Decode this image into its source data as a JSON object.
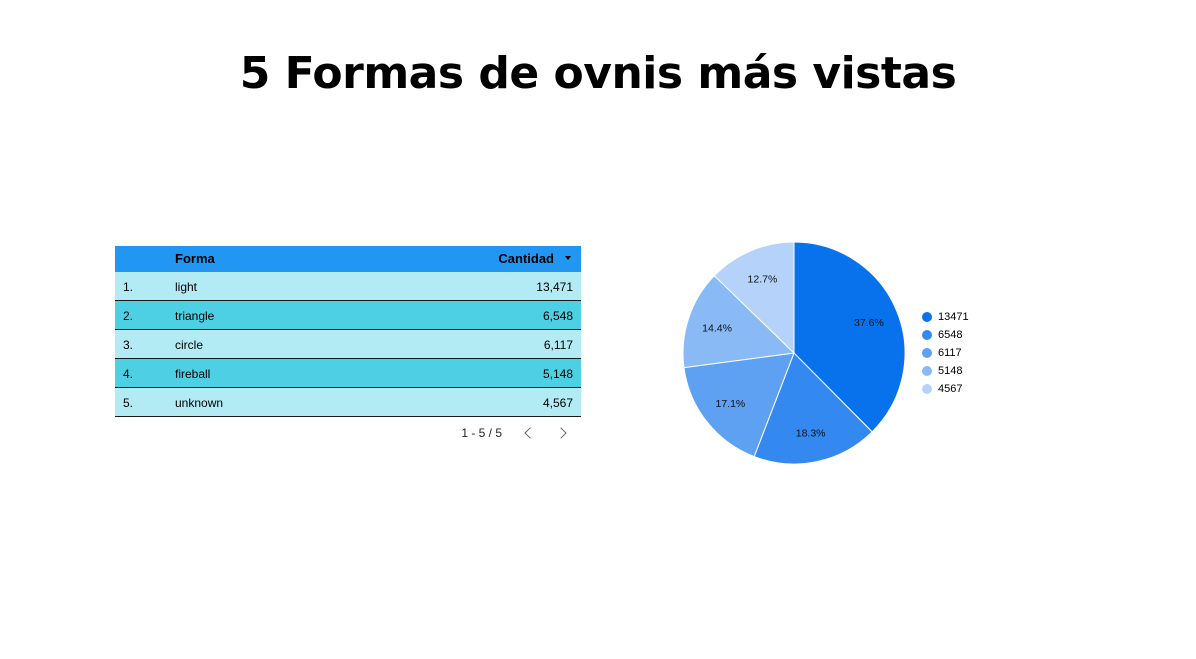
{
  "title": "5 Formas de ovnis más vistas",
  "table": {
    "headers": {
      "forma": "Forma",
      "cantidad": "Cantidad"
    },
    "rows": [
      {
        "idx": "1.",
        "forma": "light",
        "cantidad": "13,471"
      },
      {
        "idx": "2.",
        "forma": "triangle",
        "cantidad": "6,548"
      },
      {
        "idx": "3.",
        "forma": "circle",
        "cantidad": "6,117"
      },
      {
        "idx": "4.",
        "forma": "fireball",
        "cantidad": "5,148"
      },
      {
        "idx": "5.",
        "forma": "unknown",
        "cantidad": "4,567"
      }
    ],
    "row_colors": [
      "#b3ebf5",
      "#4dd0e4"
    ],
    "header_color": "#2196f3"
  },
  "pagination": {
    "text": "1 - 5 / 5"
  },
  "chart_data": {
    "type": "pie",
    "values": [
      13471,
      6548,
      6117,
      5148,
      4567
    ],
    "labels": [
      "13471",
      "6548",
      "6117",
      "5148",
      "4567"
    ],
    "percent_labels": [
      "37.6%",
      "18.3%",
      "17.1%",
      "14.4%",
      "12.7%"
    ],
    "colors": [
      "#0872ec",
      "#3389f0",
      "#5ea1f3",
      "#89baf6",
      "#b5d3fa"
    ],
    "legend_position": "right"
  }
}
